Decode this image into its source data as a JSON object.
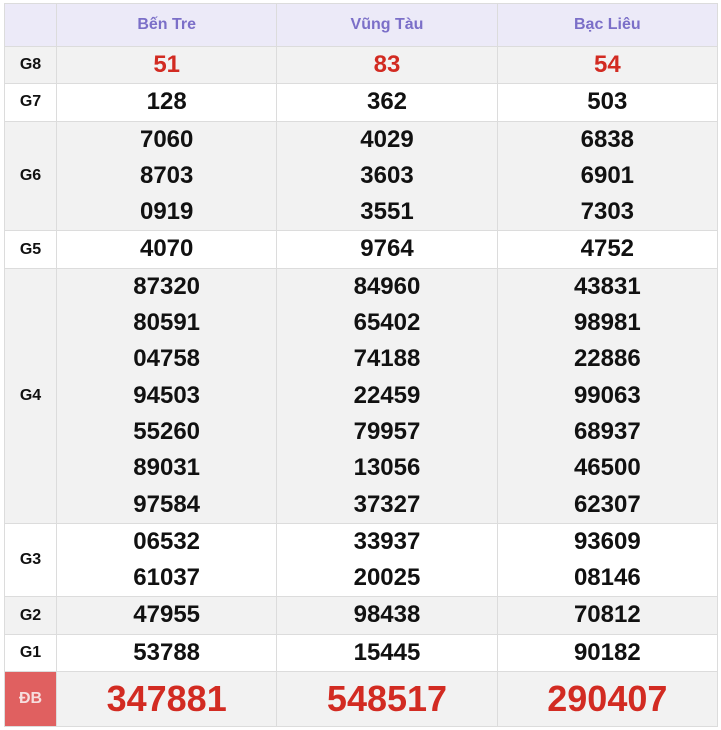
{
  "header": {
    "provinces": [
      "Bến Tre",
      "Vũng Tàu",
      "Bạc Liêu"
    ]
  },
  "colors": {
    "header_bg": "#eceaf8",
    "header_text": "#7b6fc8",
    "highlight": "#d22b22",
    "db_label_bg": "#e06060"
  },
  "rows": [
    {
      "label": "G8",
      "red": true,
      "values": [
        [
          "51"
        ],
        [
          "83"
        ],
        [
          "54"
        ]
      ]
    },
    {
      "label": "G7",
      "values": [
        [
          "128"
        ],
        [
          "362"
        ],
        [
          "503"
        ]
      ]
    },
    {
      "label": "G6",
      "values": [
        [
          "7060",
          "8703",
          "0919"
        ],
        [
          "4029",
          "3603",
          "3551"
        ],
        [
          "6838",
          "6901",
          "7303"
        ]
      ]
    },
    {
      "label": "G5",
      "values": [
        [
          "4070"
        ],
        [
          "9764"
        ],
        [
          "4752"
        ]
      ]
    },
    {
      "label": "G4",
      "values": [
        [
          "87320",
          "80591",
          "04758",
          "94503",
          "55260",
          "89031",
          "97584"
        ],
        [
          "84960",
          "65402",
          "74188",
          "22459",
          "79957",
          "13056",
          "37327"
        ],
        [
          "43831",
          "98981",
          "22886",
          "99063",
          "68937",
          "46500",
          "62307"
        ]
      ]
    },
    {
      "label": "G3",
      "values": [
        [
          "06532",
          "61037"
        ],
        [
          "33937",
          "20025"
        ],
        [
          "93609",
          "08146"
        ]
      ]
    },
    {
      "label": "G2",
      "values": [
        [
          "47955"
        ],
        [
          "98438"
        ],
        [
          "70812"
        ]
      ]
    },
    {
      "label": "G1",
      "values": [
        [
          "53788"
        ],
        [
          "15445"
        ],
        [
          "90182"
        ]
      ]
    },
    {
      "label": "ĐB",
      "db": true,
      "values": [
        [
          "347881"
        ],
        [
          "548517"
        ],
        [
          "290407"
        ]
      ]
    }
  ]
}
